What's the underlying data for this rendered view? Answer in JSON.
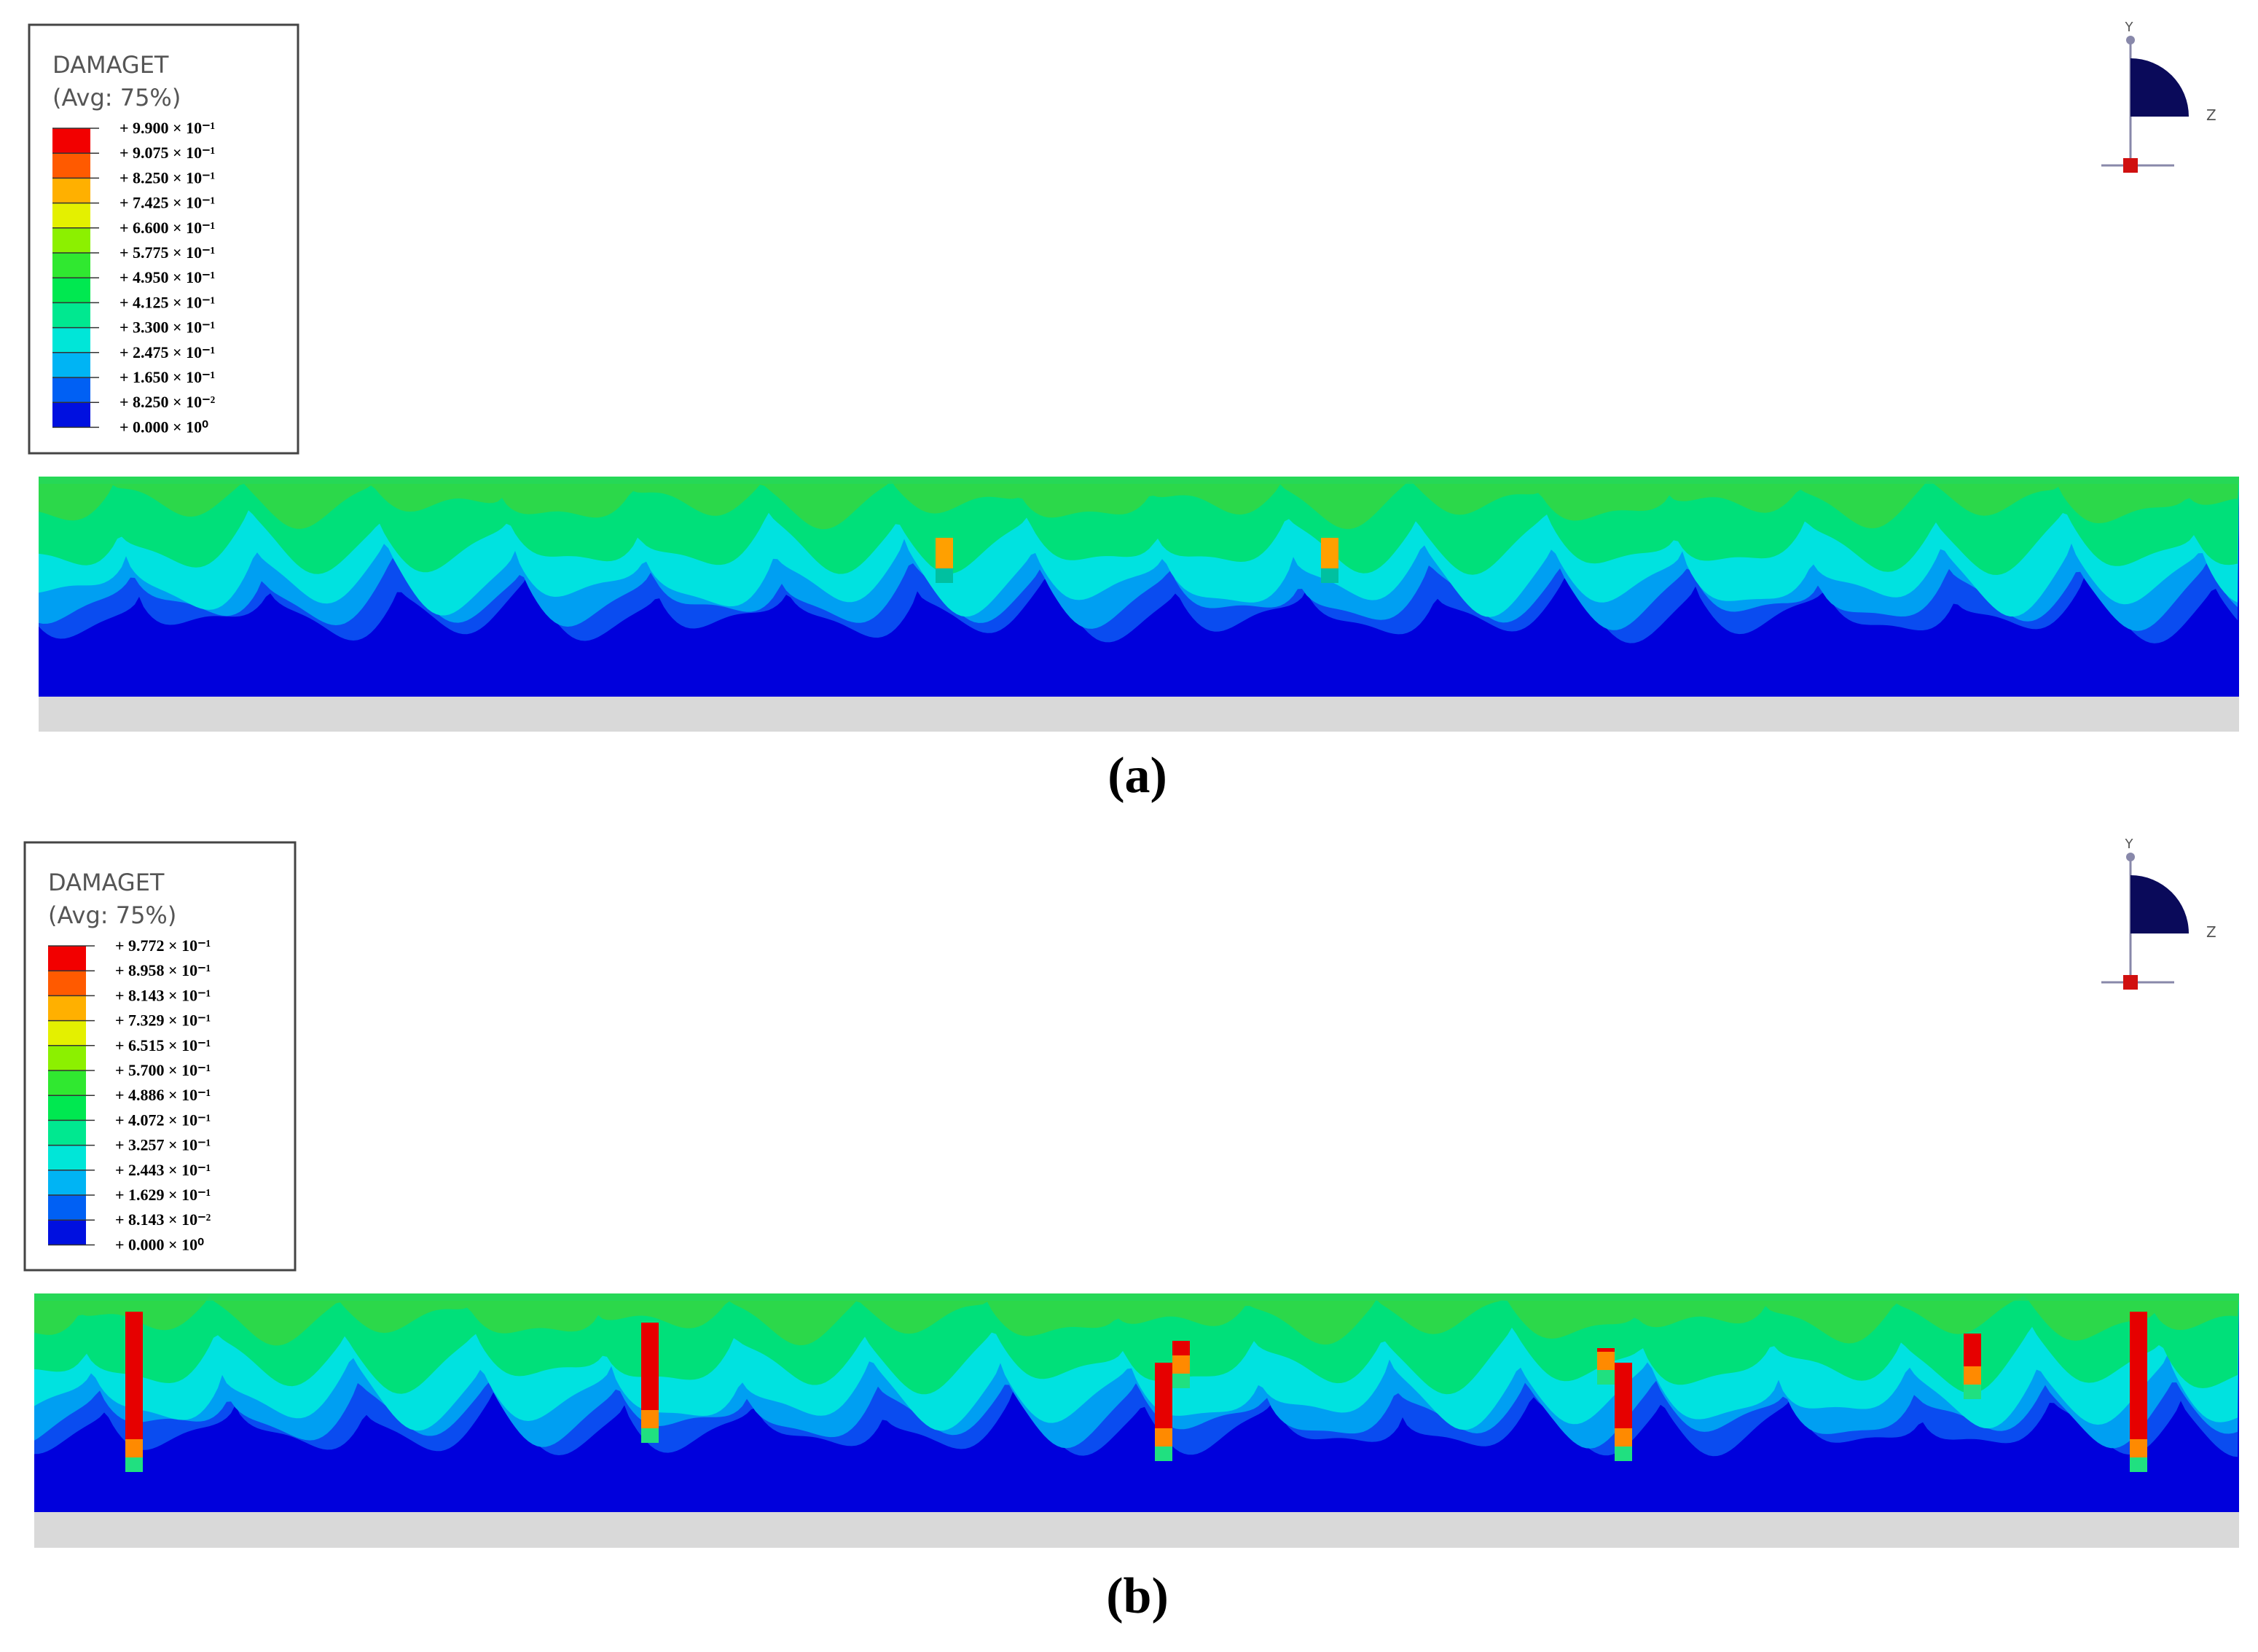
{
  "panels": [
    {
      "legend": {
        "title": "DAMAGET",
        "subtitle": "(Avg: 75%)",
        "labels": [
          "+ 9.900 × 10⁻¹",
          "+ 9.075 × 10⁻¹",
          "+ 8.250 × 10⁻¹",
          "+ 7.425 × 10⁻¹",
          "+ 6.600 × 10⁻¹",
          "+ 5.775 × 10⁻¹",
          "+ 4.950 × 10⁻¹",
          "+ 4.125 × 10⁻¹",
          "+ 3.300 × 10⁻¹",
          "+ 2.475 × 10⁻¹",
          "+ 1.650 × 10⁻¹",
          "+ 8.250 × 10⁻²",
          "+ 0.000 × 10⁰"
        ],
        "colors": [
          "#f20000",
          "#ff5a00",
          "#ffb000",
          "#e4f000",
          "#8cf000",
          "#30e830",
          "#00e850",
          "#00e890",
          "#00e6d8",
          "#00b4f4",
          "#0060f4",
          "#0010e0"
        ]
      },
      "triad": {
        "y": "Y",
        "z": "Z"
      },
      "caption": "(a)"
    },
    {
      "legend": {
        "title": "DAMAGET",
        "subtitle": "(Avg: 75%)",
        "labels": [
          "+ 9.772 × 10⁻¹",
          "+ 8.958 × 10⁻¹",
          "+ 8.143 × 10⁻¹",
          "+ 7.329 × 10⁻¹",
          "+ 6.515 × 10⁻¹",
          "+ 5.700 × 10⁻¹",
          "+ 4.886 × 10⁻¹",
          "+ 4.072 × 10⁻¹",
          "+ 3.257 × 10⁻¹",
          "+ 2.443 × 10⁻¹",
          "+ 1.629 × 10⁻¹",
          "+ 8.143 × 10⁻²",
          "+ 0.000 × 10⁰"
        ],
        "colors": [
          "#f20000",
          "#ff5a00",
          "#ffb000",
          "#e4f000",
          "#8cf000",
          "#30e830",
          "#00e850",
          "#00e890",
          "#00e6d8",
          "#00b4f4",
          "#0060f4",
          "#0010e0"
        ]
      },
      "triad": {
        "y": "Y",
        "z": "Z"
      },
      "caption": "(b)"
    }
  ]
}
